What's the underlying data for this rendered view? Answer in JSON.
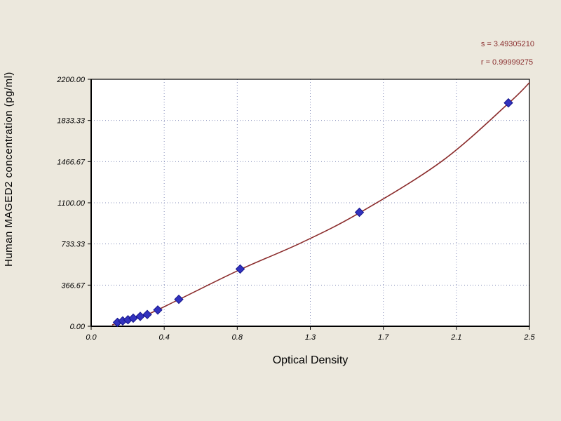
{
  "stats": {
    "s_label": "s = 3.49305210",
    "r_label": "r = 0.99999275"
  },
  "chart_data": {
    "type": "scatter",
    "title": "",
    "xlabel": "Optical Density",
    "ylabel": "Human MAGED2 concentration (pg/ml)",
    "xlim": [
      0,
      2.5
    ],
    "ylim": [
      0,
      2200
    ],
    "grid": true,
    "legend": "none",
    "x_tick_labels": [
      "0.0",
      "0.4",
      "0.8",
      "1.3",
      "1.7",
      "2.1",
      "2.5"
    ],
    "y_tick_labels": [
      "0.00",
      "366.67",
      "733.33",
      "1100.00",
      "1466.67",
      "1833.33",
      "2200.00"
    ],
    "fit": {
      "s": 3.4930521,
      "r": 0.99999275
    },
    "points": [
      [
        0.15,
        35
      ],
      [
        0.18,
        48
      ],
      [
        0.21,
        58
      ],
      [
        0.24,
        72
      ],
      [
        0.28,
        88
      ],
      [
        0.32,
        105
      ],
      [
        0.38,
        145
      ],
      [
        0.5,
        240
      ],
      [
        0.85,
        510
      ],
      [
        1.53,
        1015
      ],
      [
        2.38,
        1990
      ]
    ],
    "curve": [
      [
        0.12,
        12
      ],
      [
        0.2,
        55
      ],
      [
        0.32,
        105
      ],
      [
        0.5,
        238
      ],
      [
        0.85,
        505
      ],
      [
        1.2,
        745
      ],
      [
        1.53,
        1010
      ],
      [
        2.0,
        1470
      ],
      [
        2.38,
        1985
      ],
      [
        2.5,
        2170
      ]
    ],
    "colors": {
      "background": "#ece8dd",
      "plot_bg": "#ffffff",
      "grid": "#8890bb",
      "curve": "#8b2c2c",
      "marker": "#3232be",
      "marker_edge": "#14148c",
      "stats_text": "#8b3030"
    }
  }
}
